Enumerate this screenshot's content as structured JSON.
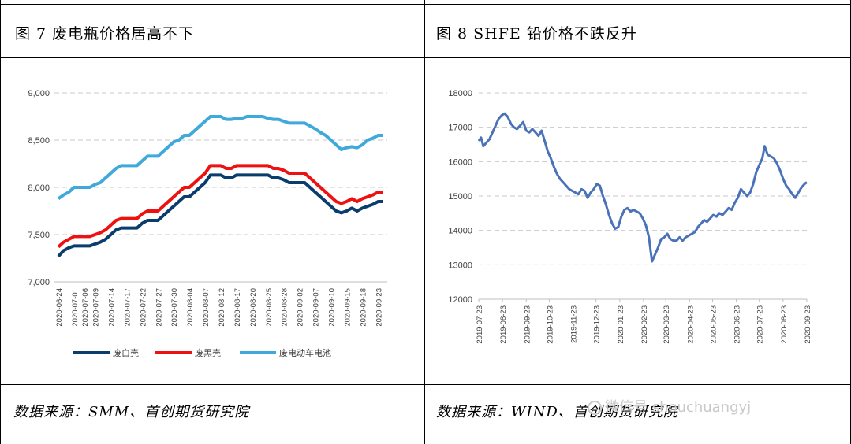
{
  "left": {
    "figure_title": "图 7 废电瓶价格居高不下",
    "source": "数据来源：SMM、首创期货研究院"
  },
  "right": {
    "figure_title": "图 8 SHFE 铅价格不跌反升",
    "source": "数据来源：WIND、首创期货研究院"
  },
  "watermark": {
    "text": "微信号 shouchuangyj",
    "icon": "wechat-icon"
  },
  "chart_data": [
    {
      "type": "line",
      "ylim": [
        7000,
        9000
      ],
      "yticks": [
        "7,000",
        "7,500",
        "8,000",
        "8,500",
        "9,000"
      ],
      "grid": true,
      "legend_position": "bottom",
      "x": [
        "2020-06-24",
        "2020-06-26",
        "2020-06-29",
        "2020-07-01",
        "2020-07-03",
        "2020-07-06",
        "2020-07-08",
        "2020-07-09",
        "2020-07-10",
        "2020-07-13",
        "2020-07-14",
        "2020-07-15",
        "2020-07-16",
        "2020-07-17",
        "2020-07-20",
        "2020-07-21",
        "2020-07-22",
        "2020-07-23",
        "2020-07-24",
        "2020-07-27",
        "2020-07-28",
        "2020-07-29",
        "2020-07-30",
        "2020-07-31",
        "2020-08-03",
        "2020-08-04",
        "2020-08-05",
        "2020-08-06",
        "2020-08-07",
        "2020-08-10",
        "2020-08-11",
        "2020-08-12",
        "2020-08-13",
        "2020-08-14",
        "2020-08-17",
        "2020-08-18",
        "2020-08-19",
        "2020-08-20",
        "2020-08-21",
        "2020-08-24",
        "2020-08-25",
        "2020-08-26",
        "2020-08-27",
        "2020-08-28",
        "2020-08-31",
        "2020-09-01",
        "2020-09-02",
        "2020-09-03",
        "2020-09-04",
        "2020-09-07",
        "2020-09-08",
        "2020-09-09",
        "2020-09-10",
        "2020-09-11",
        "2020-09-14",
        "2020-09-15",
        "2020-09-16",
        "2020-09-17",
        "2020-09-18",
        "2020-09-21",
        "2020-09-22",
        "2020-09-23",
        "2020-09-24"
      ],
      "x_tick_labels": [
        "2020-06-24",
        "2020-07-01",
        "2020-07-06",
        "2020-07-09",
        "2020-07-14",
        "2020-07-17",
        "2020-07-22",
        "2020-07-27",
        "2020-07-30",
        "2020-08-04",
        "2020-08-07",
        "2020-08-12",
        "2020-08-17",
        "2020-08-20",
        "2020-08-25",
        "2020-08-28",
        "2020-09-02",
        "2020-09-07",
        "2020-09-10",
        "2020-09-15",
        "2020-09-18",
        "2020-09-23"
      ],
      "series": [
        {
          "name": "废白壳",
          "color": "#0a3d6e",
          "values": [
            7270,
            7330,
            7360,
            7380,
            7380,
            7380,
            7380,
            7400,
            7420,
            7450,
            7500,
            7550,
            7570,
            7570,
            7570,
            7570,
            7620,
            7650,
            7650,
            7650,
            7700,
            7750,
            7800,
            7850,
            7900,
            7900,
            7950,
            8000,
            8050,
            8130,
            8130,
            8130,
            8100,
            8100,
            8130,
            8130,
            8130,
            8130,
            8130,
            8130,
            8130,
            8100,
            8100,
            8080,
            8050,
            8050,
            8050,
            8050,
            8000,
            7950,
            7900,
            7850,
            7800,
            7750,
            7730,
            7750,
            7780,
            7750,
            7780,
            7800,
            7820,
            7850,
            7850
          ]
        },
        {
          "name": "废黑壳",
          "color": "#ee1111",
          "values": [
            7370,
            7420,
            7450,
            7480,
            7480,
            7480,
            7480,
            7500,
            7520,
            7550,
            7600,
            7650,
            7670,
            7670,
            7670,
            7670,
            7720,
            7750,
            7750,
            7750,
            7800,
            7850,
            7900,
            7950,
            8000,
            8000,
            8050,
            8100,
            8150,
            8230,
            8230,
            8230,
            8200,
            8200,
            8230,
            8230,
            8230,
            8230,
            8230,
            8230,
            8230,
            8200,
            8200,
            8180,
            8150,
            8150,
            8150,
            8150,
            8100,
            8050,
            8000,
            7950,
            7900,
            7850,
            7830,
            7850,
            7880,
            7850,
            7880,
            7900,
            7920,
            7950,
            7950
          ]
        },
        {
          "name": "废电动车电池",
          "color": "#3fa9dc",
          "values": [
            7880,
            7920,
            7950,
            8000,
            8000,
            8000,
            8000,
            8030,
            8050,
            8100,
            8150,
            8200,
            8230,
            8230,
            8230,
            8230,
            8280,
            8330,
            8330,
            8330,
            8380,
            8430,
            8480,
            8500,
            8550,
            8550,
            8600,
            8650,
            8700,
            8750,
            8750,
            8750,
            8720,
            8720,
            8730,
            8730,
            8750,
            8750,
            8750,
            8750,
            8730,
            8720,
            8720,
            8700,
            8680,
            8680,
            8680,
            8680,
            8650,
            8620,
            8580,
            8550,
            8500,
            8450,
            8400,
            8420,
            8430,
            8420,
            8450,
            8500,
            8520,
            8550,
            8550
          ]
        }
      ]
    },
    {
      "type": "line",
      "ylim": [
        12000,
        18000
      ],
      "yticks": [
        "12000",
        "13000",
        "14000",
        "15000",
        "16000",
        "17000",
        "18000"
      ],
      "grid": true,
      "x_tick_labels": [
        "2019-07-23",
        "2019-08-23",
        "2019-09-23",
        "2019-10-23",
        "2019-11-23",
        "2019-12-23",
        "2020-01-23",
        "2020-02-23",
        "2020-03-23",
        "2020-04-23",
        "2020-05-23",
        "2020-06-23",
        "2020-07-23",
        "2020-08-23",
        "2020-09-23"
      ],
      "series": [
        {
          "color": "#4a72b8",
          "points": [
            [
              "2019-07-23",
              16600
            ],
            [
              "2019-07-26",
              16700
            ],
            [
              "2019-07-29",
              16450
            ],
            [
              "2019-08-02",
              16550
            ],
            [
              "2019-08-06",
              16650
            ],
            [
              "2019-08-10",
              16850
            ],
            [
              "2019-08-14",
              17050
            ],
            [
              "2019-08-18",
              17250
            ],
            [
              "2019-08-22",
              17350
            ],
            [
              "2019-08-26",
              17400
            ],
            [
              "2019-08-30",
              17300
            ],
            [
              "2019-09-03",
              17100
            ],
            [
              "2019-09-07",
              17000
            ],
            [
              "2019-09-11",
              16950
            ],
            [
              "2019-09-15",
              17050
            ],
            [
              "2019-09-19",
              17150
            ],
            [
              "2019-09-23",
              16900
            ],
            [
              "2019-09-27",
              16850
            ],
            [
              "2019-10-01",
              16950
            ],
            [
              "2019-10-05",
              16850
            ],
            [
              "2019-10-09",
              16750
            ],
            [
              "2019-10-13",
              16900
            ],
            [
              "2019-10-17",
              16600
            ],
            [
              "2019-10-21",
              16300
            ],
            [
              "2019-10-25",
              16100
            ],
            [
              "2019-10-29",
              15850
            ],
            [
              "2019-11-02",
              15650
            ],
            [
              "2019-11-06",
              15500
            ],
            [
              "2019-11-10",
              15400
            ],
            [
              "2019-11-14",
              15300
            ],
            [
              "2019-11-18",
              15200
            ],
            [
              "2019-11-22",
              15150
            ],
            [
              "2019-11-26",
              15100
            ],
            [
              "2019-11-30",
              15050
            ],
            [
              "2019-12-04",
              15200
            ],
            [
              "2019-12-08",
              15150
            ],
            [
              "2019-12-12",
              14950
            ],
            [
              "2019-12-16",
              15100
            ],
            [
              "2019-12-20",
              15200
            ],
            [
              "2019-12-24",
              15350
            ],
            [
              "2019-12-28",
              15300
            ],
            [
              "2020-01-01",
              15000
            ],
            [
              "2020-01-05",
              14750
            ],
            [
              "2020-01-09",
              14450
            ],
            [
              "2020-01-13",
              14200
            ],
            [
              "2020-01-17",
              14050
            ],
            [
              "2020-01-21",
              14100
            ],
            [
              "2020-01-25",
              14400
            ],
            [
              "2020-01-29",
              14600
            ],
            [
              "2020-02-02",
              14650
            ],
            [
              "2020-02-06",
              14550
            ],
            [
              "2020-02-10",
              14600
            ],
            [
              "2020-02-14",
              14550
            ],
            [
              "2020-02-18",
              14500
            ],
            [
              "2020-02-22",
              14350
            ],
            [
              "2020-02-26",
              14150
            ],
            [
              "2020-03-01",
              13800
            ],
            [
              "2020-03-05",
              13100
            ],
            [
              "2020-03-09",
              13300
            ],
            [
              "2020-03-13",
              13500
            ],
            [
              "2020-03-17",
              13750
            ],
            [
              "2020-03-21",
              13800
            ],
            [
              "2020-03-25",
              13900
            ],
            [
              "2020-03-29",
              13750
            ],
            [
              "2020-04-02",
              13700
            ],
            [
              "2020-04-06",
              13700
            ],
            [
              "2020-04-10",
              13800
            ],
            [
              "2020-04-14",
              13700
            ],
            [
              "2020-04-18",
              13800
            ],
            [
              "2020-04-22",
              13850
            ],
            [
              "2020-04-26",
              13900
            ],
            [
              "2020-04-30",
              13950
            ],
            [
              "2020-05-04",
              14100
            ],
            [
              "2020-05-08",
              14200
            ],
            [
              "2020-05-12",
              14300
            ],
            [
              "2020-05-16",
              14250
            ],
            [
              "2020-05-20",
              14350
            ],
            [
              "2020-05-24",
              14450
            ],
            [
              "2020-05-28",
              14400
            ],
            [
              "2020-06-01",
              14500
            ],
            [
              "2020-06-05",
              14450
            ],
            [
              "2020-06-09",
              14550
            ],
            [
              "2020-06-13",
              14650
            ],
            [
              "2020-06-17",
              14600
            ],
            [
              "2020-06-21",
              14800
            ],
            [
              "2020-06-25",
              14950
            ],
            [
              "2020-06-29",
              15200
            ],
            [
              "2020-07-03",
              15100
            ],
            [
              "2020-07-07",
              15000
            ],
            [
              "2020-07-11",
              15100
            ],
            [
              "2020-07-15",
              15350
            ],
            [
              "2020-07-19",
              15700
            ],
            [
              "2020-07-23",
              15900
            ],
            [
              "2020-07-27",
              16100
            ],
            [
              "2020-07-30",
              16450
            ],
            [
              "2020-08-03",
              16200
            ],
            [
              "2020-08-07",
              16150
            ],
            [
              "2020-08-11",
              16100
            ],
            [
              "2020-08-15",
              15950
            ],
            [
              "2020-08-19",
              15750
            ],
            [
              "2020-08-23",
              15500
            ],
            [
              "2020-08-27",
              15300
            ],
            [
              "2020-08-31",
              15200
            ],
            [
              "2020-09-04",
              15050
            ],
            [
              "2020-09-08",
              14950
            ],
            [
              "2020-09-12",
              15100
            ],
            [
              "2020-09-16",
              15250
            ],
            [
              "2020-09-20",
              15350
            ],
            [
              "2020-09-23",
              15400
            ]
          ]
        }
      ]
    }
  ]
}
